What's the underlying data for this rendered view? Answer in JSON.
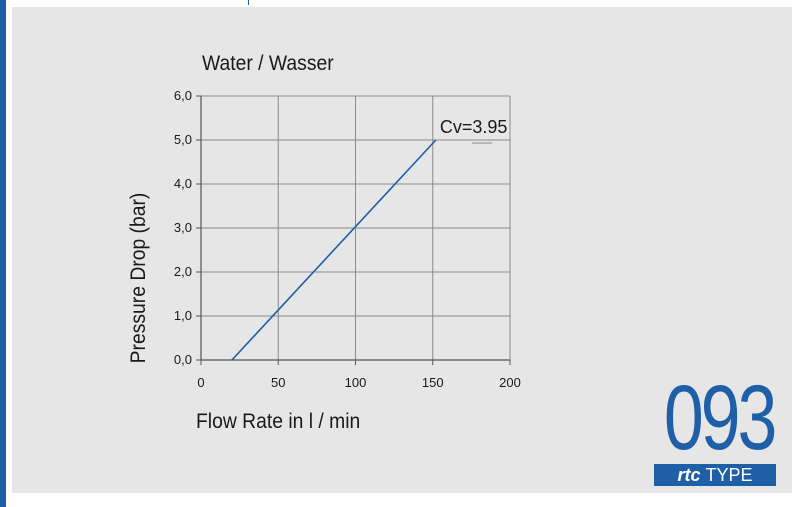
{
  "chart_data": {
    "type": "line",
    "title": "Water / Wasser",
    "xlabel": "Flow Rate in l / min",
    "ylabel": "Pressure Drop (bar)",
    "xlim": [
      0,
      200
    ],
    "ylim": [
      0,
      6
    ],
    "x_ticks": [
      "0",
      "50",
      "100",
      "150",
      "200"
    ],
    "y_ticks": [
      "0,0",
      "1,0",
      "2,0",
      "3,0",
      "4,0",
      "5,0",
      "6,0"
    ],
    "grid": true,
    "series": [
      {
        "name": "",
        "color": "#1f5fa8",
        "x": [
          20,
          152
        ],
        "y": [
          0,
          5
        ]
      }
    ],
    "annotations": [
      {
        "text": "Cv=3.95",
        "x": 152,
        "y": 5
      }
    ]
  },
  "logo": {
    "number": "093",
    "brand": "rtc",
    "type_label": "TYPE",
    "color": "#1f5fa8"
  }
}
